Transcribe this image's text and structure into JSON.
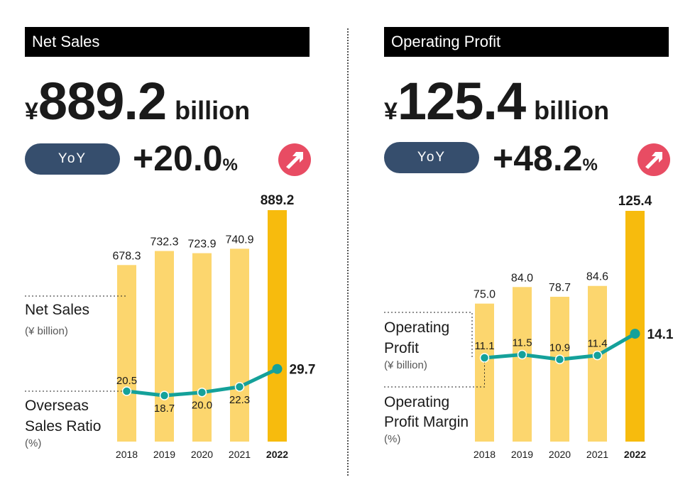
{
  "panels": [
    {
      "title": "Net Sales",
      "currency": "¥",
      "headline_value": "889.2",
      "headline_unit": "billion",
      "yoy_label": "YoY",
      "yoy_value": "+20.0",
      "yoy_unit": "%",
      "bar_label": [
        "Net Sales"
      ],
      "bar_sublabel": "(¥ billion)",
      "line_label": [
        "Overseas",
        "Sales Ratio"
      ],
      "line_sublabel": "(%)"
    },
    {
      "title": "Operating Profit",
      "currency": "¥",
      "headline_value": "125.4",
      "headline_unit": "billion",
      "yoy_label": "YoY",
      "yoy_value": "+48.2",
      "yoy_unit": "%",
      "bar_label": [
        "Operating",
        "Profit"
      ],
      "bar_sublabel": "(¥ billion)",
      "line_label": [
        "Operating",
        "Profit Margin"
      ],
      "line_sublabel": "(%)"
    }
  ],
  "colors": {
    "bar": "#fcd66e",
    "bar_highlight": "#f7bb0d",
    "line": "#14a19a",
    "yoy_pill": "#364e6d",
    "arrow_circle": "#e84c63"
  },
  "chart_data": [
    {
      "type": "bar",
      "categories": [
        "2018",
        "2019",
        "2020",
        "2021",
        "2022"
      ],
      "series": [
        {
          "name": "Net Sales",
          "values": [
            678.3,
            732.3,
            723.9,
            740.9,
            889.2
          ]
        },
        {
          "name": "Overseas Sales Ratio",
          "type": "line",
          "values": [
            20.5,
            18.7,
            20.0,
            22.3,
            29.7
          ]
        }
      ],
      "bar_labels": [
        "678.3",
        "732.3",
        "723.9",
        "740.9",
        "889.2"
      ],
      "line_labels": [
        "20.5",
        "18.7",
        "20.0",
        "22.3",
        "29.7"
      ],
      "highlight_index": 4
    },
    {
      "type": "bar",
      "categories": [
        "2018",
        "2019",
        "2020",
        "2021",
        "2022"
      ],
      "series": [
        {
          "name": "Operating Profit",
          "values": [
            75.0,
            84.0,
            78.7,
            84.6,
            125.4
          ]
        },
        {
          "name": "Operating Profit Margin",
          "type": "line",
          "values": [
            11.1,
            11.5,
            10.9,
            11.4,
            14.1
          ]
        }
      ],
      "bar_labels": [
        "75.0",
        "84.0",
        "78.7",
        "84.6",
        "125.4"
      ],
      "line_labels": [
        "11.1",
        "11.5",
        "10.9",
        "11.4",
        "14.1"
      ],
      "highlight_index": 4
    }
  ]
}
